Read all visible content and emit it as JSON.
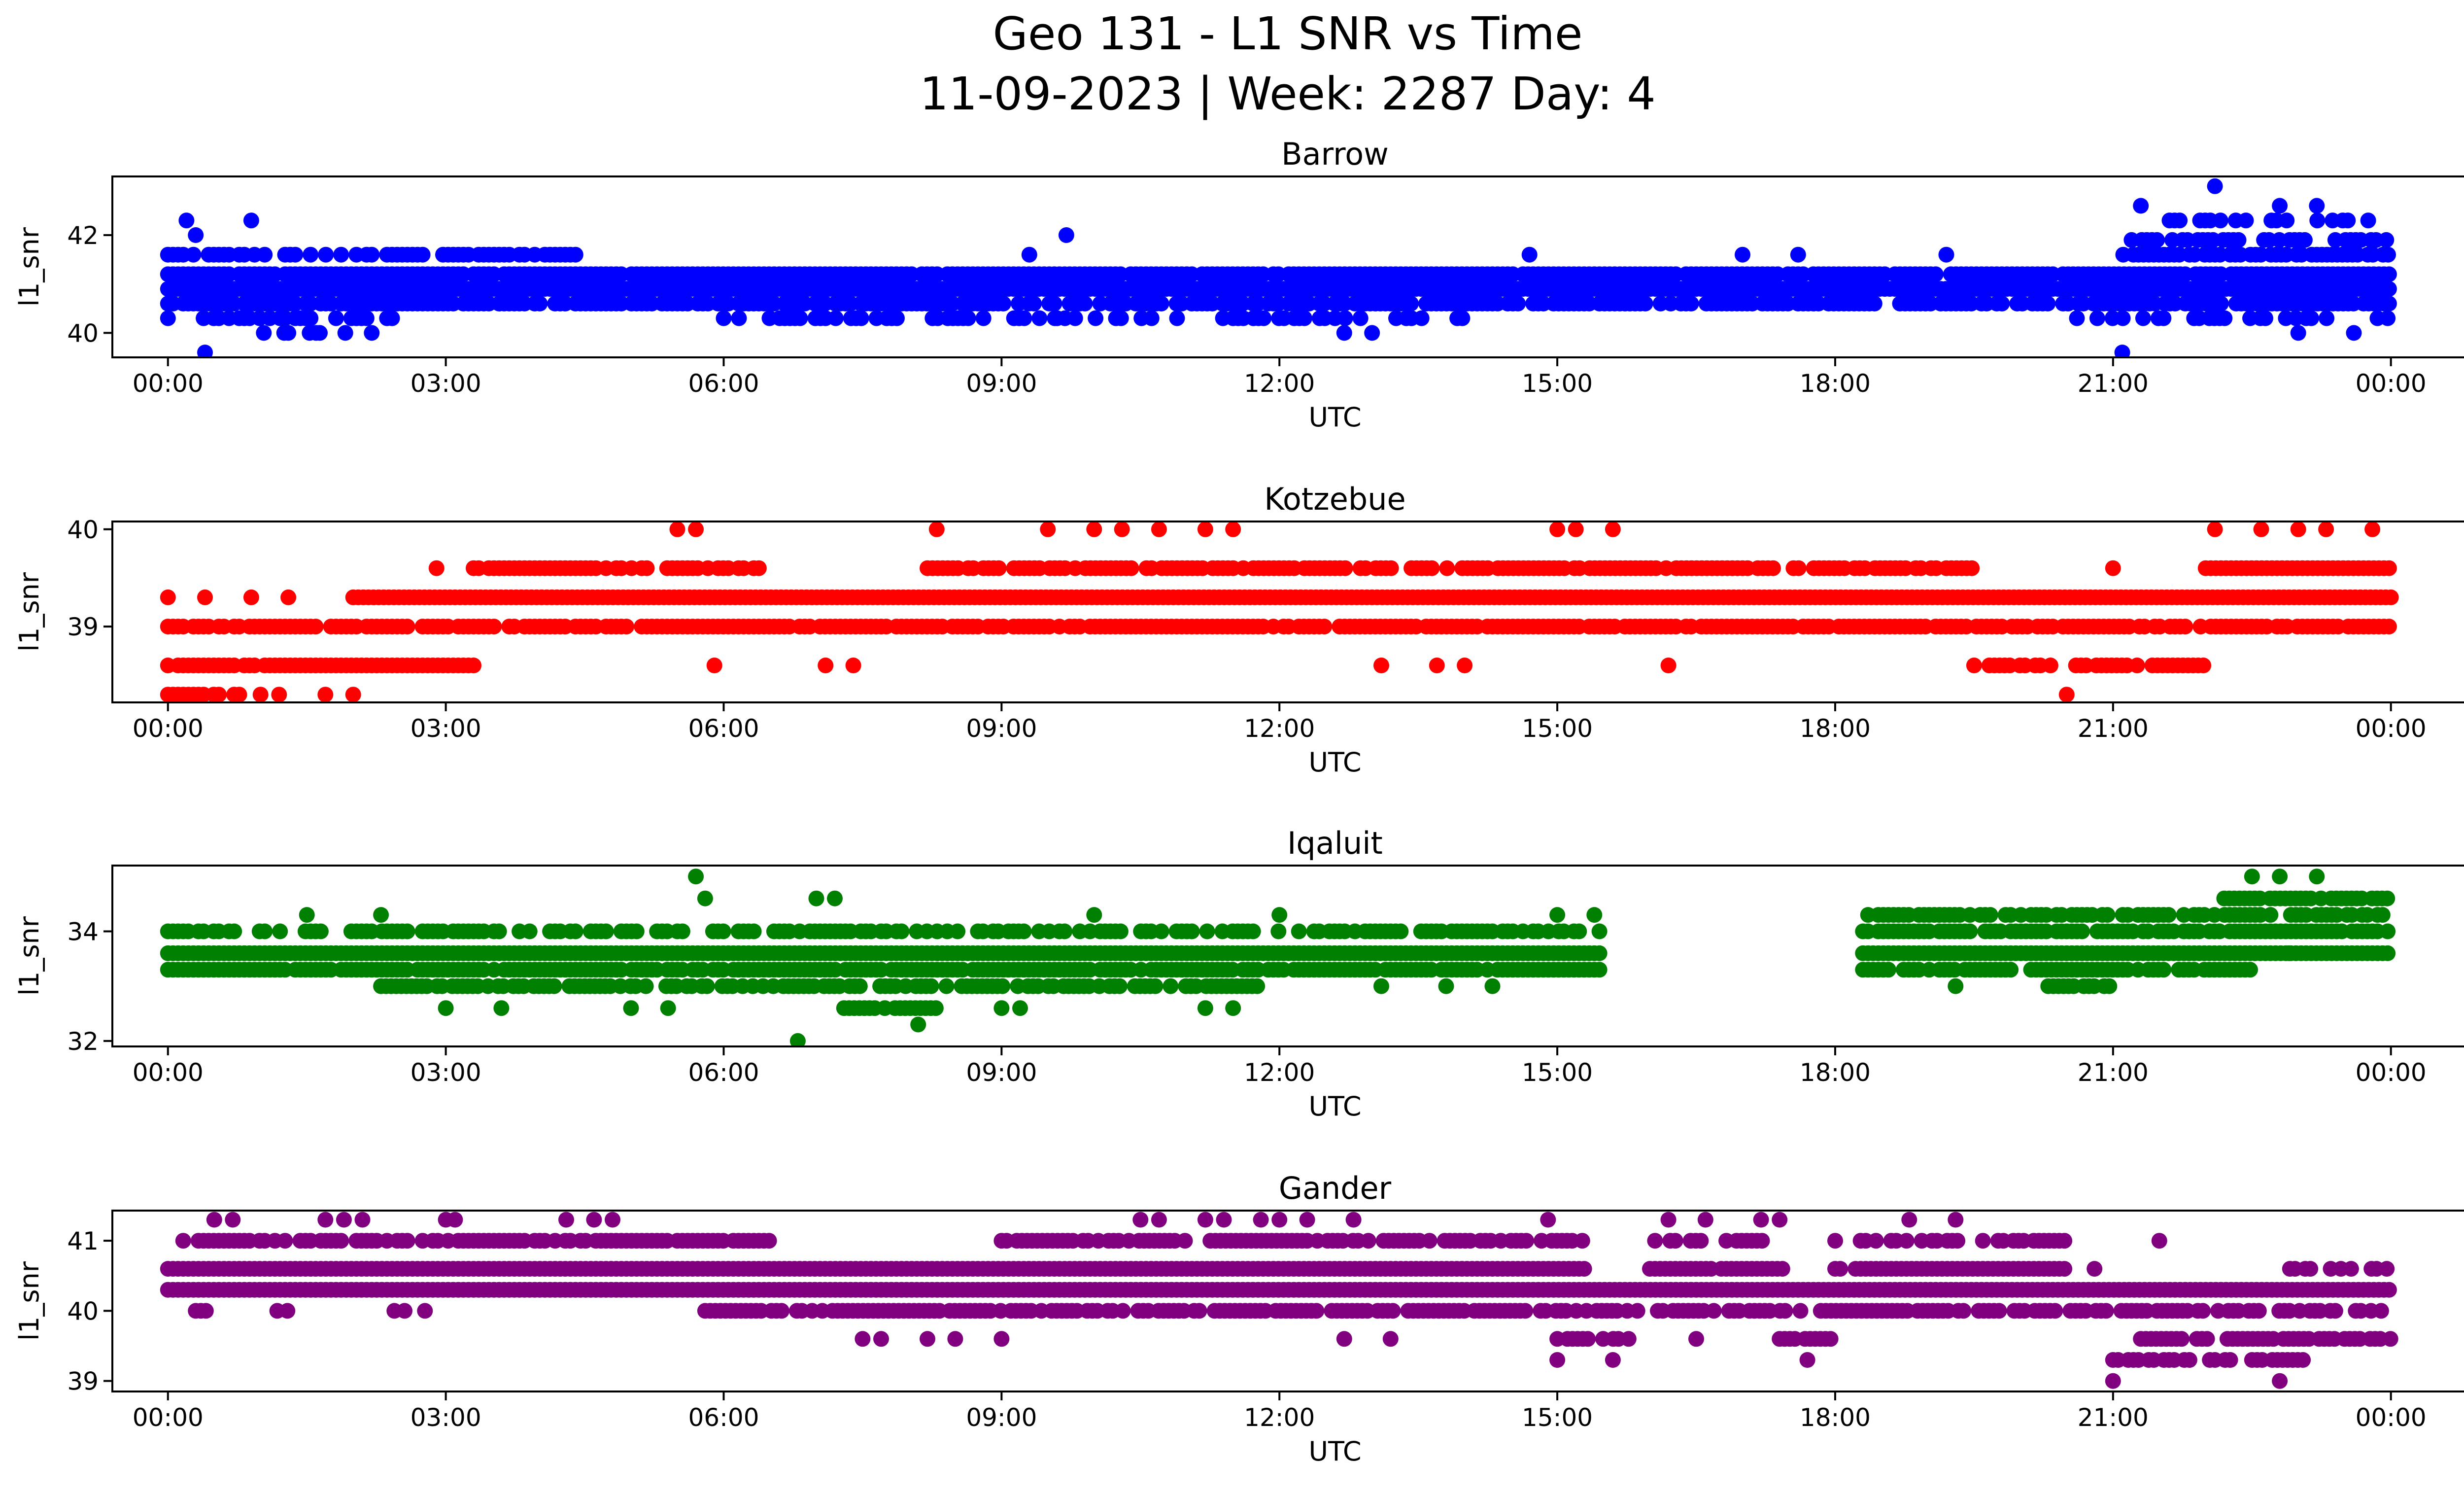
{
  "figure": {
    "title_line1": "Geo 131 - L1 SNR vs Time",
    "title_line2": "11-09-2023 | Week: 2287 Day: 4"
  },
  "chart_data": [
    {
      "type": "scatter",
      "title": "Barrow",
      "xlabel": "UTC",
      "ylabel": "l1_snr",
      "color": "#0000ff",
      "xlim_hours": [
        -0.6,
        25.8
      ],
      "ylim": [
        39.5,
        43.2
      ],
      "xticks_hours": [
        0,
        3,
        6,
        9,
        12,
        15,
        18,
        21,
        24
      ],
      "xtick_labels": [
        "00:00",
        "03:00",
        "06:00",
        "09:00",
        "12:00",
        "15:00",
        "18:00",
        "21:00",
        "00:00"
      ],
      "yticks": [
        40,
        42
      ],
      "ytick_labels": [
        "40",
        "42"
      ],
      "level_step": 0.3,
      "bands": [
        {
          "level": 40.6,
          "start": 0.0,
          "end": 24.0,
          "density": 0.85
        },
        {
          "level": 40.9,
          "start": 0.0,
          "end": 24.0,
          "density": 1.0
        },
        {
          "level": 41.2,
          "start": 0.0,
          "end": 24.0,
          "density": 0.95
        },
        {
          "level": 40.3,
          "start": 0.0,
          "end": 2.5,
          "density": 0.55
        },
        {
          "level": 40.3,
          "start": 6.0,
          "end": 14.0,
          "density": 0.5
        },
        {
          "level": 40.3,
          "start": 20.5,
          "end": 24.0,
          "density": 0.4
        },
        {
          "level": 41.6,
          "start": 0.0,
          "end": 4.5,
          "density": 0.7
        },
        {
          "level": 41.6,
          "start": 21.0,
          "end": 24.0,
          "density": 0.8
        },
        {
          "level": 41.9,
          "start": 21.2,
          "end": 24.0,
          "density": 0.75
        },
        {
          "level": 42.3,
          "start": 21.5,
          "end": 23.8,
          "density": 0.4
        },
        {
          "level": 40.0,
          "start": 0.1,
          "end": 2.2,
          "density": 0.15
        }
      ],
      "points": [
        [
          0.2,
          42.3
        ],
        [
          0.3,
          42.0
        ],
        [
          0.9,
          42.3
        ],
        [
          0.4,
          39.6
        ],
        [
          1.3,
          40.0
        ],
        [
          1.6,
          40.0
        ],
        [
          2.2,
          40.0
        ],
        [
          9.7,
          42.0
        ],
        [
          9.3,
          41.6
        ],
        [
          12.7,
          40.0
        ],
        [
          13.0,
          40.0
        ],
        [
          14.7,
          41.6
        ],
        [
          17.0,
          41.6
        ],
        [
          21.1,
          39.6
        ],
        [
          21.3,
          42.6
        ],
        [
          22.1,
          43.0
        ],
        [
          22.8,
          42.6
        ],
        [
          23.2,
          42.6
        ],
        [
          23.0,
          40.0
        ],
        [
          23.6,
          40.0
        ],
        [
          9.6,
          40.3
        ],
        [
          17.6,
          41.6
        ],
        [
          19.2,
          41.6
        ]
      ]
    },
    {
      "type": "scatter",
      "title": "Kotzebue",
      "xlabel": "UTC",
      "ylabel": "l1_snr",
      "color": "#ff0000",
      "xlim_hours": [
        -0.6,
        25.8
      ],
      "ylim": [
        38.22,
        40.08
      ],
      "xticks_hours": [
        0,
        3,
        6,
        9,
        12,
        15,
        18,
        21,
        24
      ],
      "xtick_labels": [
        "00:00",
        "03:00",
        "06:00",
        "09:00",
        "12:00",
        "15:00",
        "18:00",
        "21:00",
        "00:00"
      ],
      "yticks": [
        39,
        40
      ],
      "ytick_labels": [
        "39",
        "40"
      ],
      "level_step": 0.3,
      "bands": [
        {
          "level": 39.0,
          "start": 0.0,
          "end": 24.0,
          "density": 0.85
        },
        {
          "level": 39.3,
          "start": 2.0,
          "end": 24.0,
          "density": 1.0
        },
        {
          "level": 38.6,
          "start": 0.0,
          "end": 3.3,
          "density": 0.95
        },
        {
          "level": 38.6,
          "start": 19.5,
          "end": 22.0,
          "density": 0.8
        },
        {
          "level": 39.6,
          "start": 3.3,
          "end": 6.5,
          "density": 0.7
        },
        {
          "level": 39.6,
          "start": 8.2,
          "end": 19.5,
          "density": 0.8
        },
        {
          "level": 39.6,
          "start": 22.0,
          "end": 24.0,
          "density": 1.0
        },
        {
          "level": 38.3,
          "start": 0.0,
          "end": 0.8,
          "density": 0.8
        }
      ],
      "points": [
        [
          0.0,
          39.3
        ],
        [
          0.4,
          39.3
        ],
        [
          0.9,
          39.3
        ],
        [
          1.3,
          39.3
        ],
        [
          1.0,
          38.3
        ],
        [
          1.2,
          38.3
        ],
        [
          1.7,
          38.3
        ],
        [
          2.0,
          38.3
        ],
        [
          2.9,
          39.6
        ],
        [
          5.5,
          40.0
        ],
        [
          5.7,
          40.0
        ],
        [
          8.3,
          40.0
        ],
        [
          9.5,
          40.0
        ],
        [
          10.0,
          40.0
        ],
        [
          10.3,
          40.0
        ],
        [
          10.7,
          40.0
        ],
        [
          11.2,
          40.0
        ],
        [
          11.5,
          40.0
        ],
        [
          15.0,
          40.0
        ],
        [
          15.2,
          40.0
        ],
        [
          15.6,
          40.0
        ],
        [
          22.1,
          40.0
        ],
        [
          22.6,
          40.0
        ],
        [
          23.0,
          40.0
        ],
        [
          23.3,
          40.0
        ],
        [
          23.8,
          40.0
        ],
        [
          5.9,
          38.6
        ],
        [
          7.1,
          38.6
        ],
        [
          7.4,
          38.6
        ],
        [
          13.1,
          38.6
        ],
        [
          13.7,
          38.6
        ],
        [
          14.0,
          38.6
        ],
        [
          16.2,
          38.6
        ],
        [
          20.5,
          38.3
        ],
        [
          21.0,
          39.6
        ]
      ]
    },
    {
      "type": "scatter",
      "title": "Iqaluit",
      "xlabel": "UTC",
      "ylabel": "l1_snr",
      "color": "#008000",
      "xlim_hours": [
        -0.6,
        25.8
      ],
      "ylim": [
        31.9,
        35.2
      ],
      "xticks_hours": [
        0,
        3,
        6,
        9,
        12,
        15,
        18,
        21,
        24
      ],
      "xtick_labels": [
        "00:00",
        "03:00",
        "06:00",
        "09:00",
        "12:00",
        "15:00",
        "18:00",
        "21:00",
        "00:00"
      ],
      "yticks": [
        32,
        34
      ],
      "ytick_labels": [
        "32",
        "34"
      ],
      "level_step": 0.3,
      "bands": [
        {
          "level": 33.6,
          "start": 0.0,
          "end": 15.5,
          "density": 1.0
        },
        {
          "level": 33.6,
          "start": 18.3,
          "end": 24.0,
          "density": 1.0
        },
        {
          "level": 34.0,
          "start": 0.0,
          "end": 15.5,
          "density": 0.6
        },
        {
          "level": 34.0,
          "start": 18.3,
          "end": 24.0,
          "density": 0.9
        },
        {
          "level": 33.3,
          "start": 0.0,
          "end": 15.5,
          "density": 0.9
        },
        {
          "level": 33.3,
          "start": 18.3,
          "end": 22.5,
          "density": 0.85
        },
        {
          "level": 33.0,
          "start": 2.3,
          "end": 11.8,
          "density": 0.7
        },
        {
          "level": 34.3,
          "start": 18.3,
          "end": 24.0,
          "density": 0.6
        },
        {
          "level": 34.6,
          "start": 22.2,
          "end": 24.0,
          "density": 0.9
        },
        {
          "level": 33.0,
          "start": 20.3,
          "end": 21.0,
          "density": 0.9
        },
        {
          "level": 32.6,
          "start": 7.3,
          "end": 8.3,
          "density": 0.8
        }
      ],
      "points": [
        [
          5.7,
          35.0
        ],
        [
          6.8,
          32.0
        ],
        [
          8.1,
          32.3
        ],
        [
          7.0,
          34.6
        ],
        [
          7.2,
          34.6
        ],
        [
          5.8,
          34.6
        ],
        [
          1.5,
          34.3
        ],
        [
          2.3,
          34.3
        ],
        [
          3.0,
          32.6
        ],
        [
          3.6,
          32.6
        ],
        [
          5.0,
          32.6
        ],
        [
          5.4,
          32.6
        ],
        [
          9.0,
          32.6
        ],
        [
          9.2,
          32.6
        ],
        [
          10.0,
          34.3
        ],
        [
          11.2,
          32.6
        ],
        [
          11.5,
          32.6
        ],
        [
          12.0,
          34.3
        ],
        [
          13.1,
          33.0
        ],
        [
          13.8,
          33.0
        ],
        [
          14.3,
          33.0
        ],
        [
          15.0,
          34.3
        ],
        [
          15.4,
          34.3
        ],
        [
          19.3,
          33.0
        ],
        [
          22.5,
          35.0
        ],
        [
          22.8,
          35.0
        ],
        [
          23.2,
          35.0
        ],
        [
          22.9,
          33.6
        ]
      ]
    },
    {
      "type": "scatter",
      "title": "Gander",
      "xlabel": "UTC",
      "ylabel": "l1_snr",
      "color": "#800080",
      "xlim_hours": [
        -0.6,
        25.8
      ],
      "ylim": [
        38.85,
        41.43
      ],
      "xticks_hours": [
        0,
        3,
        6,
        9,
        12,
        15,
        18,
        21,
        24
      ],
      "xtick_labels": [
        "00:00",
        "03:00",
        "06:00",
        "09:00",
        "12:00",
        "15:00",
        "18:00",
        "21:00",
        "00:00"
      ],
      "yticks": [
        39,
        40,
        41
      ],
      "ytick_labels": [
        "39",
        "40",
        "41"
      ],
      "level_step": 0.3,
      "bands": [
        {
          "level": 40.3,
          "start": 0.0,
          "end": 24.0,
          "density": 1.0
        },
        {
          "level": 40.6,
          "start": 0.0,
          "end": 15.3,
          "density": 1.0
        },
        {
          "level": 40.6,
          "start": 16.0,
          "end": 17.5,
          "density": 0.9
        },
        {
          "level": 40.6,
          "start": 18.0,
          "end": 20.5,
          "density": 0.9
        },
        {
          "level": 40.6,
          "start": 22.8,
          "end": 24.0,
          "density": 0.6
        },
        {
          "level": 41.0,
          "start": 0.0,
          "end": 6.5,
          "density": 0.7
        },
        {
          "level": 41.0,
          "start": 9.0,
          "end": 15.3,
          "density": 0.7
        },
        {
          "level": 41.0,
          "start": 16.0,
          "end": 17.5,
          "density": 0.6
        },
        {
          "level": 41.0,
          "start": 18.0,
          "end": 20.5,
          "density": 0.6
        },
        {
          "level": 40.0,
          "start": 5.8,
          "end": 24.0,
          "density": 0.75
        },
        {
          "level": 39.6,
          "start": 15.0,
          "end": 15.8,
          "density": 0.6
        },
        {
          "level": 39.6,
          "start": 21.3,
          "end": 24.0,
          "density": 0.6
        },
        {
          "level": 39.6,
          "start": 17.4,
          "end": 18.0,
          "density": 0.8
        },
        {
          "level": 39.3,
          "start": 21.0,
          "end": 22.3,
          "density": 0.6
        },
        {
          "level": 39.3,
          "start": 22.5,
          "end": 23.1,
          "density": 0.8
        },
        {
          "level": 40.0,
          "start": 0.3,
          "end": 3.3,
          "density": 0.15
        }
      ],
      "points": [
        [
          0.5,
          41.3
        ],
        [
          0.7,
          41.3
        ],
        [
          1.7,
          41.3
        ],
        [
          1.9,
          41.3
        ],
        [
          2.1,
          41.3
        ],
        [
          3.0,
          41.3
        ],
        [
          3.1,
          41.3
        ],
        [
          4.3,
          41.3
        ],
        [
          4.6,
          41.3
        ],
        [
          4.8,
          41.3
        ],
        [
          10.5,
          41.3
        ],
        [
          10.7,
          41.3
        ],
        [
          11.2,
          41.3
        ],
        [
          11.4,
          41.3
        ],
        [
          11.8,
          41.3
        ],
        [
          12.0,
          41.3
        ],
        [
          12.3,
          41.3
        ],
        [
          12.8,
          41.3
        ],
        [
          14.9,
          41.3
        ],
        [
          16.2,
          41.3
        ],
        [
          16.6,
          41.3
        ],
        [
          17.2,
          41.3
        ],
        [
          17.4,
          41.3
        ],
        [
          18.8,
          41.3
        ],
        [
          19.3,
          41.3
        ],
        [
          7.5,
          39.6
        ],
        [
          7.7,
          39.6
        ],
        [
          8.2,
          39.6
        ],
        [
          8.5,
          39.6
        ],
        [
          9.0,
          39.6
        ],
        [
          12.7,
          39.6
        ],
        [
          13.2,
          39.6
        ],
        [
          15.0,
          39.3
        ],
        [
          15.6,
          39.3
        ],
        [
          16.5,
          39.6
        ],
        [
          17.7,
          39.3
        ],
        [
          21.0,
          39.0
        ],
        [
          22.8,
          39.0
        ],
        [
          20.8,
          40.6
        ],
        [
          21.5,
          41.0
        ]
      ]
    }
  ]
}
